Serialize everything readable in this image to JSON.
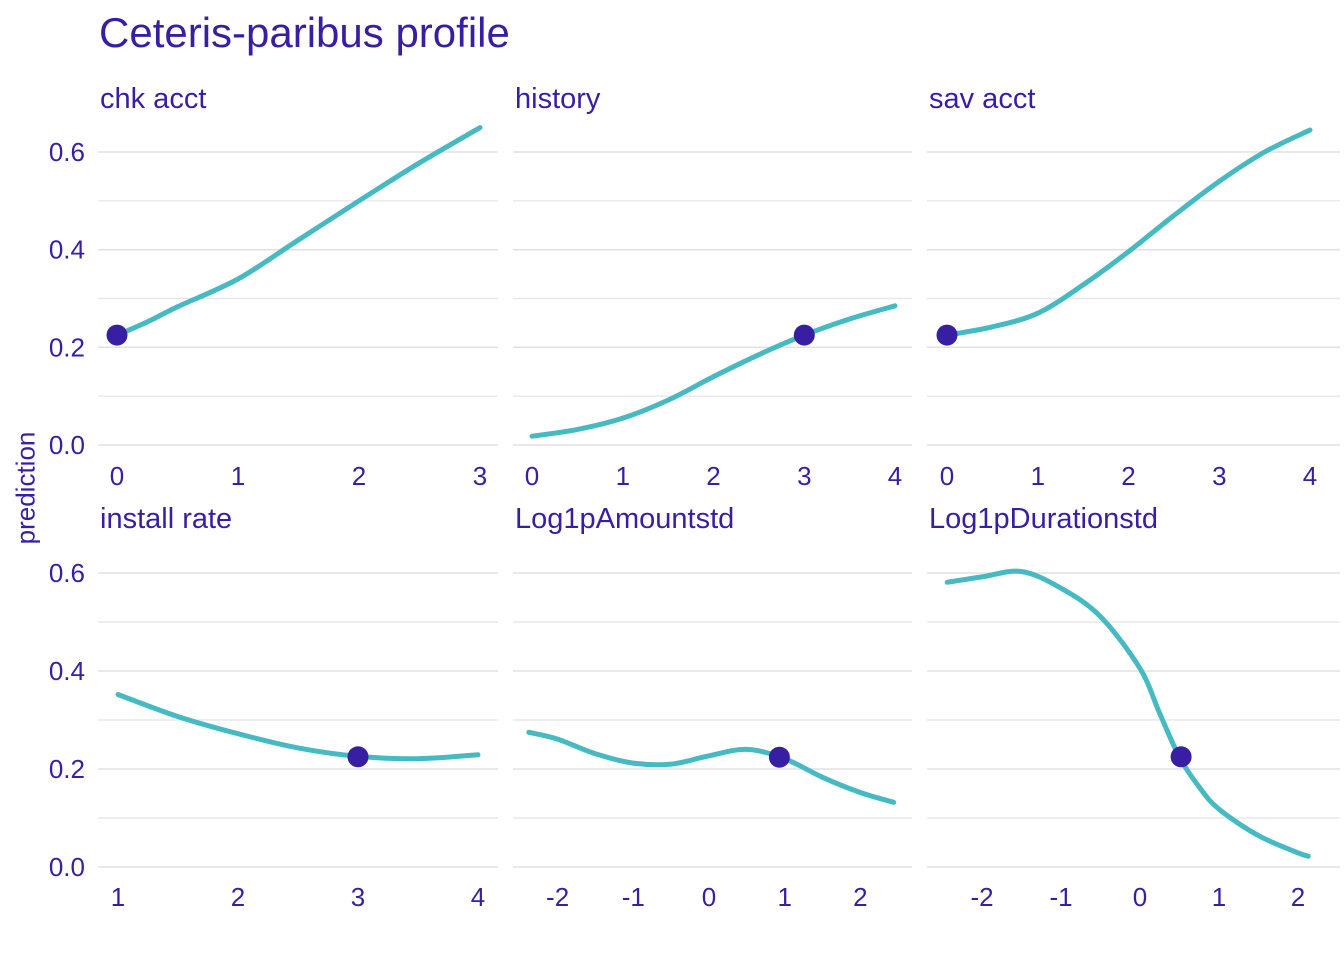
{
  "colors": {
    "text": "#371ea3",
    "curve": "#46bac2",
    "point": "#371ea3",
    "grid_major": "#e2e2e2",
    "grid_minor": "#e8e8e8",
    "background": "#ffffff"
  },
  "chart_data": {
    "type": "line",
    "title": "Ceteris-paribus profile",
    "ylabel": "prediction",
    "xlabel": "",
    "legend": "none",
    "grid": "horizontal-only",
    "ylim": [
      0,
      0.66
    ],
    "y_ticks": [
      0,
      0.2,
      0.4,
      0.6
    ],
    "y_tick_labels": [
      "0.0",
      "0.2",
      "0.4",
      "0.6"
    ],
    "y_minor_gridlines": [
      0.1,
      0.3,
      0.5
    ],
    "panels": [
      {
        "label": "chk  acct",
        "x_ticks": [
          0,
          1,
          2,
          3
        ],
        "x_tick_labels": [
          "0",
          "1",
          "2",
          "3"
        ],
        "series": {
          "x": [
            0,
            0.25,
            0.5,
            1,
            1.5,
            2,
            2.5,
            3
          ],
          "y": [
            0.225,
            0.252,
            0.283,
            0.34,
            0.42,
            0.5,
            0.578,
            0.65
          ]
        },
        "observation": {
          "x": 0,
          "y": 0.225
        }
      },
      {
        "label": "history",
        "x_ticks": [
          0,
          1,
          2,
          3,
          4
        ],
        "x_tick_labels": [
          "0",
          "1",
          "2",
          "3",
          "4"
        ],
        "series": {
          "x": [
            0,
            0.5,
            1,
            1.5,
            2,
            2.5,
            3,
            3.5,
            4
          ],
          "y": [
            0.018,
            0.032,
            0.055,
            0.092,
            0.14,
            0.185,
            0.225,
            0.258,
            0.285
          ]
        },
        "observation": {
          "x": 3,
          "y": 0.225
        }
      },
      {
        "label": "sav  acct",
        "x_ticks": [
          0,
          1,
          2,
          3,
          4
        ],
        "x_tick_labels": [
          "0",
          "1",
          "2",
          "3",
          "4"
        ],
        "series": {
          "x": [
            0,
            0.5,
            1,
            1.5,
            2,
            2.5,
            3,
            3.5,
            4
          ],
          "y": [
            0.225,
            0.242,
            0.27,
            0.328,
            0.396,
            0.47,
            0.54,
            0.6,
            0.645
          ]
        },
        "observation": {
          "x": 0,
          "y": 0.225
        }
      },
      {
        "label": "install  rate",
        "x_ticks": [
          1,
          2,
          3,
          4
        ],
        "x_tick_labels": [
          "1",
          "2",
          "3",
          "4"
        ],
        "series": {
          "x": [
            1,
            1.5,
            2,
            2.5,
            3,
            3.5,
            4
          ],
          "y": [
            0.352,
            0.307,
            0.272,
            0.243,
            0.226,
            0.221,
            0.229
          ]
        },
        "observation": {
          "x": 3,
          "y": 0.225
        }
      },
      {
        "label": "Log1pAmountstd",
        "x_ticks": [
          -2,
          -1,
          0,
          1,
          2
        ],
        "x_tick_labels": [
          "-2",
          "-1",
          "0",
          "1",
          "2"
        ],
        "series": {
          "x": [
            -2.38,
            -2,
            -1.5,
            -1,
            -0.5,
            0,
            0.5,
            1,
            1.5,
            2,
            2.44
          ],
          "y": [
            0.275,
            0.261,
            0.231,
            0.212,
            0.21,
            0.227,
            0.24,
            0.221,
            0.183,
            0.152,
            0.132
          ]
        },
        "observation": {
          "x": 0.93,
          "y": 0.224
        }
      },
      {
        "label": "Log1pDurationstd",
        "x_ticks": [
          -2,
          -1,
          0,
          1,
          2
        ],
        "x_tick_labels": [
          "-2",
          "-1",
          "0",
          "1",
          "2"
        ],
        "series": {
          "x": [
            -2.44,
            -2,
            -1.5,
            -1,
            -0.5,
            0,
            0.25,
            0.5,
            0.75,
            1,
            1.5,
            2,
            2.13
          ],
          "y": [
            0.581,
            0.592,
            0.603,
            0.569,
            0.511,
            0.405,
            0.313,
            0.224,
            0.163,
            0.118,
            0.064,
            0.029,
            0.022
          ]
        },
        "observation": {
          "x": 0.52,
          "y": 0.225
        }
      }
    ]
  }
}
